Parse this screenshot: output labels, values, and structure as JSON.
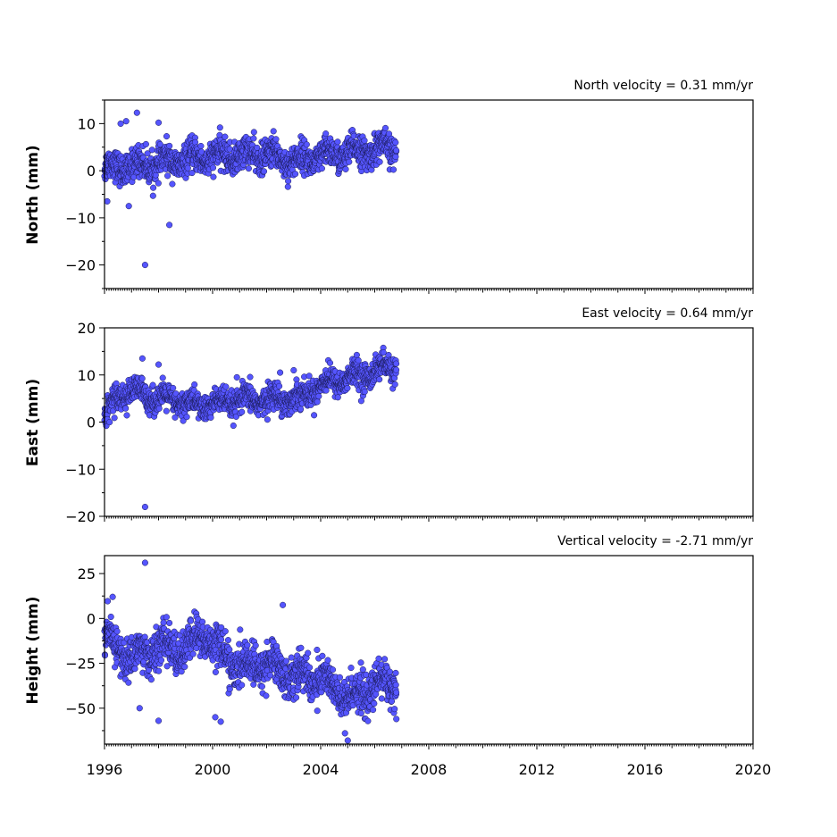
{
  "chart_data": {
    "type": "scatter",
    "xlim": [
      1996,
      2020
    ],
    "x_ticks": [
      1996,
      2000,
      2004,
      2008,
      2012,
      2016,
      2020
    ],
    "x_tick_labels": [
      "1996",
      "2000",
      "2004",
      "2008",
      "2012",
      "2016",
      "2020"
    ],
    "grid": false,
    "marker_color": "#5555ff",
    "marker_edge_color": "#1a1a55",
    "panels": [
      {
        "key": "north",
        "title": "North velocity = 0.31 mm/yr",
        "ylabel": "North (mm)",
        "ylim": [
          -25,
          15
        ],
        "y_ticks": [
          -20,
          -10,
          0,
          10
        ],
        "y_tick_labels": [
          "−20",
          "−10",
          "0",
          "10"
        ],
        "series": {
          "trend": [
            [
              1996.0,
              0.5
            ],
            [
              1998.0,
              1.5
            ],
            [
              2000.0,
              3.0
            ],
            [
              2002.0,
              3.5
            ],
            [
              2003.0,
              2.0
            ],
            [
              2004.5,
              3.5
            ],
            [
              2006.8,
              5.0
            ]
          ],
          "spread": 2.0,
          "outliers": [
            [
              1997.2,
              12.3
            ],
            [
              1996.8,
              10.5
            ],
            [
              1998.0,
              10.2
            ],
            [
              1998.4,
              -11.5
            ],
            [
              1997.5,
              -20.0
            ],
            [
              1996.9,
              -7.5
            ],
            [
              1996.1,
              -6.5
            ],
            [
              1996.6,
              10.0
            ]
          ]
        }
      },
      {
        "key": "east",
        "title": "East velocity = 0.64 mm/yr",
        "ylabel": "East (mm)",
        "ylim": [
          -20,
          20
        ],
        "y_ticks": [
          -20,
          -10,
          0,
          10,
          20
        ],
        "y_tick_labels": [
          "−20",
          "−10",
          "0",
          "10",
          "20"
        ],
        "series": {
          "trend": [
            [
              1996.0,
              1.0
            ],
            [
              1996.5,
              6.0
            ],
            [
              1997.0,
              6.5
            ],
            [
              1998.0,
              5.0
            ],
            [
              1999.5,
              3.5
            ],
            [
              2001.0,
              4.5
            ],
            [
              2002.5,
              5.0
            ],
            [
              2003.2,
              5.0
            ],
            [
              2004.0,
              8.0
            ],
            [
              2005.5,
              10.0
            ],
            [
              2006.8,
              12.0
            ]
          ],
          "spread": 1.7,
          "outliers": [
            [
              1997.5,
              -18.0
            ],
            [
              1997.4,
              13.5
            ],
            [
              1998.0,
              12.2
            ],
            [
              2005.5,
              4.5
            ],
            [
              2003.0,
              11.0
            ],
            [
              2002.5,
              10.5
            ],
            [
              2000.9,
              9.5
            ]
          ]
        }
      },
      {
        "key": "height",
        "title": "Vertical velocity = -2.71 mm/yr",
        "ylabel": "Height (mm)",
        "ylim": [
          -70,
          35
        ],
        "y_ticks": [
          -50,
          -25,
          0,
          25
        ],
        "y_tick_labels": [
          "−50",
          "−25",
          "0",
          "25"
        ],
        "series": {
          "trend": [
            [
              1996.0,
              -12.0
            ],
            [
              1997.0,
              -22.0
            ],
            [
              1998.0,
              -16.0
            ],
            [
              1999.0,
              -18.0
            ],
            [
              1999.6,
              -8.0
            ],
            [
              2000.3,
              -18.0
            ],
            [
              2001.0,
              -28.0
            ],
            [
              2002.0,
              -25.0
            ],
            [
              2003.0,
              -32.0
            ],
            [
              2004.0,
              -33.0
            ],
            [
              2005.0,
              -45.0
            ],
            [
              2006.0,
              -38.0
            ],
            [
              2006.8,
              -35.0
            ]
          ],
          "spread": 7.0,
          "outliers": [
            [
              1997.5,
              31.0
            ],
            [
              1996.3,
              12.0
            ],
            [
              2002.6,
              7.5
            ],
            [
              1998.0,
              -57.0
            ],
            [
              2000.1,
              -55.0
            ],
            [
              2000.3,
              -57.5
            ],
            [
              2005.0,
              -68.0
            ],
            [
              2004.9,
              -64.0
            ],
            [
              2006.8,
              -56.0
            ],
            [
              1997.3,
              -50.0
            ]
          ]
        }
      }
    ]
  }
}
